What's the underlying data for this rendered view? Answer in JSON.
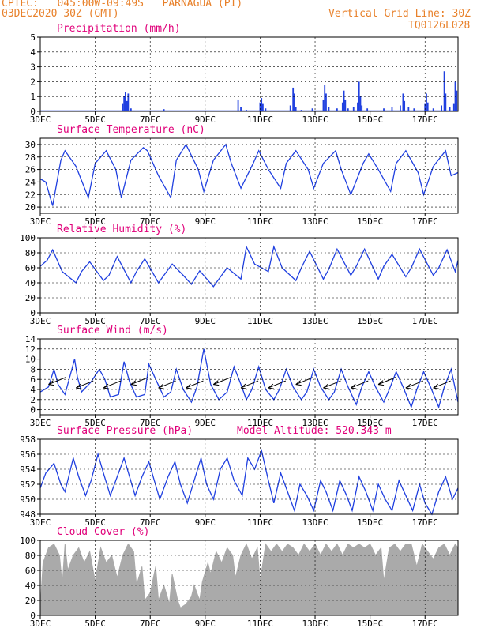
{
  "header": {
    "line1": "CPTEC:   045:00W-09:49S   PARNAGUA (PI)",
    "line2": "03DEC2020 30Z (GMT)",
    "grid_note": "Vertical Grid Line: 30Z",
    "code": "TQ0126L028"
  },
  "colors": {
    "header": "#e8812b",
    "title": "#e0007a",
    "line": "#2040e0",
    "cloud": "#aaaaaa",
    "grid": "#000000"
  },
  "chart_data": [
    {
      "type": "bar",
      "title": "Precipitation (mm/h)",
      "x_tick_labels": [
        "3DEC",
        "5DEC",
        "7DEC",
        "9DEC",
        "11DEC",
        "13DEC",
        "15DEC",
        "17DEC"
      ],
      "x_range_days": [
        3,
        18.2
      ],
      "ylim": [
        0,
        5
      ],
      "yticks": [
        0,
        1,
        2,
        3,
        4,
        5
      ],
      "grid": true,
      "points": [
        [
          6.0,
          0.5
        ],
        [
          6.05,
          1.0
        ],
        [
          6.1,
          1.3
        ],
        [
          6.15,
          0.7
        ],
        [
          6.2,
          1.2
        ],
        [
          6.3,
          0.2
        ],
        [
          7.5,
          0.15
        ],
        [
          10.2,
          0.8
        ],
        [
          10.3,
          0.3
        ],
        [
          10.5,
          0.1
        ],
        [
          11.0,
          0.6
        ],
        [
          11.05,
          0.9
        ],
        [
          11.1,
          0.5
        ],
        [
          11.2,
          0.2
        ],
        [
          12.1,
          0.4
        ],
        [
          12.2,
          1.6
        ],
        [
          12.25,
          1.2
        ],
        [
          12.3,
          0.3
        ],
        [
          12.5,
          0.1
        ],
        [
          12.9,
          0.2
        ],
        [
          13.3,
          0.8
        ],
        [
          13.35,
          1.8
        ],
        [
          13.4,
          1.2
        ],
        [
          13.5,
          0.3
        ],
        [
          13.8,
          0.2
        ],
        [
          14.0,
          0.6
        ],
        [
          14.05,
          1.4
        ],
        [
          14.1,
          0.8
        ],
        [
          14.2,
          0.2
        ],
        [
          14.4,
          0.3
        ],
        [
          14.55,
          0.6
        ],
        [
          14.6,
          2.0
        ],
        [
          14.65,
          1.0
        ],
        [
          14.7,
          0.4
        ],
        [
          14.9,
          0.2
        ],
        [
          15.5,
          0.2
        ],
        [
          15.8,
          0.3
        ],
        [
          16.1,
          0.4
        ],
        [
          16.2,
          1.2
        ],
        [
          16.25,
          0.7
        ],
        [
          16.4,
          0.3
        ],
        [
          16.6,
          0.2
        ],
        [
          17.0,
          0.5
        ],
        [
          17.05,
          1.2
        ],
        [
          17.1,
          0.6
        ],
        [
          17.3,
          0.2
        ],
        [
          17.6,
          0.4
        ],
        [
          17.7,
          2.7
        ],
        [
          17.75,
          1.2
        ],
        [
          17.9,
          0.3
        ],
        [
          18.05,
          0.5
        ],
        [
          18.1,
          2.0
        ],
        [
          18.15,
          1.4
        ]
      ]
    },
    {
      "type": "line",
      "title": "Surface Temperature (nC)",
      "x_tick_labels": [
        "3DEC",
        "5DEC",
        "7DEC",
        "9DEC",
        "11DEC",
        "13DEC",
        "15DEC",
        "17DEC"
      ],
      "x_range_days": [
        3,
        18.2
      ],
      "ylim": [
        19,
        31
      ],
      "yticks": [
        20,
        22,
        24,
        26,
        28,
        30
      ],
      "grid": true,
      "series": [
        {
          "x": [
            3.0,
            3.2,
            3.45,
            3.75,
            3.9,
            4.3,
            4.75,
            5.0,
            5.4,
            5.75,
            5.95,
            6.3,
            6.75,
            6.9,
            7.3,
            7.75,
            7.95,
            8.3,
            8.75,
            8.95,
            9.3,
            9.75,
            9.95,
            10.3,
            10.75,
            10.95,
            11.3,
            11.75,
            11.95,
            12.3,
            12.75,
            12.95,
            13.3,
            13.75,
            13.95,
            14.3,
            14.75,
            14.95,
            15.3,
            15.75,
            15.95,
            16.3,
            16.75,
            16.95,
            17.3,
            17.75,
            17.95,
            18.2
          ],
          "y": [
            24.5,
            24.0,
            20.2,
            27.5,
            29.0,
            26.5,
            21.5,
            27.0,
            29.0,
            26.0,
            21.5,
            27.5,
            29.5,
            29.0,
            25.0,
            21.5,
            27.5,
            30.0,
            26.0,
            22.5,
            27.5,
            30.0,
            27.0,
            23.0,
            27.0,
            29.0,
            26.0,
            23.0,
            27.0,
            29.0,
            26.0,
            23.0,
            27.0,
            29.0,
            26.0,
            22.0,
            27.0,
            28.5,
            26.0,
            22.5,
            27.0,
            29.0,
            25.5,
            22.0,
            26.5,
            29.0,
            25.0,
            25.5
          ]
        }
      ]
    },
    {
      "type": "line",
      "title": "Relative Humidity (%)",
      "x_tick_labels": [
        "3DEC",
        "5DEC",
        "7DEC",
        "9DEC",
        "11DEC",
        "13DEC",
        "15DEC",
        "17DEC"
      ],
      "x_range_days": [
        3,
        18.2
      ],
      "ylim": [
        0,
        100
      ],
      "yticks": [
        0,
        20,
        40,
        60,
        80,
        100
      ],
      "grid": true,
      "series": [
        {
          "x": [
            3.0,
            3.25,
            3.45,
            3.8,
            4.3,
            4.5,
            4.8,
            5.3,
            5.5,
            5.8,
            6.3,
            6.5,
            6.8,
            7.3,
            7.5,
            7.8,
            8.2,
            8.5,
            8.8,
            9.3,
            9.5,
            9.8,
            10.3,
            10.5,
            10.8,
            11.3,
            11.5,
            11.8,
            12.3,
            12.5,
            12.8,
            13.3,
            13.5,
            13.8,
            14.3,
            14.5,
            14.8,
            15.3,
            15.5,
            15.8,
            16.3,
            16.5,
            16.8,
            17.3,
            17.5,
            17.8,
            18.1,
            18.2
          ],
          "y": [
            62,
            70,
            84,
            55,
            40,
            55,
            68,
            43,
            50,
            75,
            40,
            55,
            72,
            40,
            50,
            65,
            50,
            38,
            56,
            35,
            45,
            60,
            45,
            88,
            65,
            55,
            88,
            60,
            43,
            60,
            82,
            45,
            58,
            85,
            50,
            62,
            85,
            45,
            62,
            78,
            48,
            60,
            85,
            50,
            60,
            84,
            55,
            70
          ]
        }
      ]
    },
    {
      "type": "line",
      "title": "Surface Wind (m/s)",
      "x_tick_labels": [
        "3DEC",
        "5DEC",
        "7DEC",
        "9DEC",
        "11DEC",
        "13DEC",
        "15DEC",
        "17DEC"
      ],
      "x_range_days": [
        3,
        18.2
      ],
      "ylim": [
        -1,
        14
      ],
      "yticks": [
        0,
        2,
        4,
        6,
        8,
        10,
        12,
        14
      ],
      "grid": true,
      "series": [
        {
          "x": [
            3.0,
            3.3,
            3.5,
            3.65,
            3.9,
            4.25,
            4.35,
            4.5,
            4.85,
            5.15,
            5.35,
            5.55,
            5.85,
            6.05,
            6.25,
            6.5,
            6.8,
            6.95,
            7.2,
            7.5,
            7.75,
            7.95,
            8.2,
            8.5,
            8.7,
            8.95,
            9.2,
            9.5,
            9.8,
            10.05,
            10.3,
            10.5,
            10.7,
            10.95,
            11.2,
            11.5,
            11.7,
            11.95,
            12.2,
            12.5,
            12.7,
            12.95,
            13.2,
            13.5,
            13.7,
            13.95,
            14.2,
            14.5,
            14.7,
            14.95,
            15.2,
            15.5,
            15.7,
            15.95,
            16.2,
            16.5,
            16.7,
            16.95,
            17.2,
            17.5,
            17.7,
            17.95,
            18.2
          ],
          "y": [
            3.5,
            4.5,
            8.0,
            5.0,
            3.0,
            10.0,
            6.5,
            3.5,
            5.5,
            8.0,
            6.0,
            2.5,
            3.0,
            9.5,
            5.5,
            2.5,
            3.0,
            9.0,
            6.0,
            2.5,
            3.5,
            8.0,
            4.0,
            1.5,
            4.5,
            12.0,
            5.0,
            2.0,
            3.5,
            8.5,
            5.0,
            2.0,
            4.0,
            8.5,
            4.0,
            2.0,
            4.0,
            8.0,
            4.5,
            2.0,
            3.5,
            8.0,
            4.5,
            2.0,
            3.5,
            8.0,
            4.5,
            1.0,
            4.5,
            7.5,
            4.5,
            1.5,
            4.0,
            7.5,
            4.5,
            0.5,
            4.0,
            7.5,
            4.5,
            0.5,
            4.5,
            8.0,
            1.5
          ]
        }
      ],
      "barbs_note": "wind direction arrows along series"
    },
    {
      "type": "line",
      "title": "Surface Pressure (hPa)",
      "annotation": "Model Altitude: 520.343 m",
      "x_tick_labels": [
        "3DEC",
        "5DEC",
        "7DEC",
        "9DEC",
        "11DEC",
        "13DEC",
        "15DEC",
        "17DEC"
      ],
      "x_range_days": [
        3,
        18.2
      ],
      "ylim": [
        948,
        958
      ],
      "yticks": [
        948,
        950,
        952,
        954,
        956,
        958
      ],
      "grid": true,
      "series": [
        {
          "x": [
            3.0,
            3.2,
            3.5,
            3.75,
            3.9,
            4.2,
            4.4,
            4.65,
            4.85,
            5.1,
            5.3,
            5.55,
            5.8,
            6.05,
            6.25,
            6.45,
            6.7,
            6.95,
            7.15,
            7.35,
            7.65,
            7.9,
            8.1,
            8.35,
            8.6,
            8.85,
            9.05,
            9.3,
            9.55,
            9.8,
            10.05,
            10.35,
            10.55,
            10.8,
            11.05,
            11.3,
            11.5,
            11.75,
            12.0,
            12.25,
            12.45,
            12.7,
            12.95,
            13.2,
            13.4,
            13.65,
            13.9,
            14.15,
            14.35,
            14.6,
            14.85,
            15.1,
            15.3,
            15.55,
            15.8,
            16.05,
            16.3,
            16.55,
            16.8,
            17.0,
            17.25,
            17.5,
            17.75,
            18.0,
            18.2
          ],
          "y": [
            951.5,
            953.5,
            954.8,
            952.0,
            951.0,
            955.5,
            953.0,
            950.5,
            952.5,
            956.0,
            953.5,
            950.5,
            953.0,
            955.5,
            953.0,
            950.5,
            953.0,
            955.0,
            952.5,
            950.0,
            953.0,
            955.0,
            952.0,
            949.5,
            952.5,
            955.5,
            952.0,
            950.0,
            954.0,
            955.5,
            952.5,
            950.5,
            955.5,
            954.0,
            956.5,
            952.5,
            949.5,
            953.5,
            951.0,
            948.5,
            952.0,
            950.5,
            948.5,
            952.5,
            951.0,
            948.5,
            952.5,
            950.5,
            948.5,
            953.0,
            951.0,
            948.5,
            952.0,
            950.0,
            948.5,
            952.5,
            950.5,
            948.5,
            952.0,
            949.5,
            948.0,
            951.0,
            953.0,
            950.0,
            951.5
          ]
        }
      ]
    },
    {
      "type": "area",
      "title": "Cloud Cover (%)",
      "x_tick_labels": [
        "3DEC",
        "5DEC",
        "7DEC",
        "9DEC",
        "11DEC",
        "13DEC",
        "15DEC",
        "17DEC"
      ],
      "x_range_days": [
        3,
        18.2
      ],
      "ylim": [
        0,
        100
      ],
      "yticks": [
        0,
        20,
        40,
        60,
        80,
        100
      ],
      "grid": true,
      "points": [
        [
          3.0,
          10
        ],
        [
          3.1,
          70
        ],
        [
          3.3,
          90
        ],
        [
          3.5,
          95
        ],
        [
          3.7,
          80
        ],
        [
          3.8,
          40
        ],
        [
          3.9,
          95
        ],
        [
          4.0,
          60
        ],
        [
          4.2,
          80
        ],
        [
          4.4,
          90
        ],
        [
          4.6,
          70
        ],
        [
          4.8,
          85
        ],
        [
          5.0,
          45
        ],
        [
          5.2,
          90
        ],
        [
          5.4,
          70
        ],
        [
          5.6,
          80
        ],
        [
          5.8,
          50
        ],
        [
          6.0,
          80
        ],
        [
          6.2,
          95
        ],
        [
          6.4,
          85
        ],
        [
          6.5,
          40
        ],
        [
          6.7,
          65
        ],
        [
          6.8,
          20
        ],
        [
          7.0,
          30
        ],
        [
          7.2,
          65
        ],
        [
          7.3,
          20
        ],
        [
          7.5,
          40
        ],
        [
          7.7,
          15
        ],
        [
          7.8,
          55
        ],
        [
          8.0,
          20
        ],
        [
          8.1,
          10
        ],
        [
          8.3,
          15
        ],
        [
          8.5,
          25
        ],
        [
          8.6,
          40
        ],
        [
          8.8,
          20
        ],
        [
          8.9,
          45
        ],
        [
          9.1,
          70
        ],
        [
          9.2,
          55
        ],
        [
          9.4,
          85
        ],
        [
          9.6,
          70
        ],
        [
          9.8,
          90
        ],
        [
          10.0,
          80
        ],
        [
          10.1,
          50
        ],
        [
          10.3,
          80
        ],
        [
          10.5,
          95
        ],
        [
          10.7,
          75
        ],
        [
          10.9,
          90
        ],
        [
          11.0,
          45
        ],
        [
          11.2,
          95
        ],
        [
          11.4,
          85
        ],
        [
          11.6,
          95
        ],
        [
          11.8,
          85
        ],
        [
          12.0,
          95
        ],
        [
          12.2,
          90
        ],
        [
          12.4,
          80
        ],
        [
          12.6,
          95
        ],
        [
          12.8,
          85
        ],
        [
          13.0,
          95
        ],
        [
          13.2,
          80
        ],
        [
          13.4,
          95
        ],
        [
          13.6,
          85
        ],
        [
          13.8,
          95
        ],
        [
          14.0,
          80
        ],
        [
          14.2,
          95
        ],
        [
          14.4,
          90
        ],
        [
          14.6,
          95
        ],
        [
          14.8,
          90
        ],
        [
          15.0,
          95
        ],
        [
          15.2,
          80
        ],
        [
          15.4,
          90
        ],
        [
          15.5,
          45
        ],
        [
          15.7,
          90
        ],
        [
          15.9,
          95
        ],
        [
          16.1,
          85
        ],
        [
          16.3,
          95
        ],
        [
          16.5,
          95
        ],
        [
          16.7,
          65
        ],
        [
          16.9,
          95
        ],
        [
          17.1,
          85
        ],
        [
          17.3,
          75
        ],
        [
          17.5,
          90
        ],
        [
          17.7,
          95
        ],
        [
          17.9,
          80
        ],
        [
          18.1,
          95
        ],
        [
          18.2,
          90
        ]
      ]
    }
  ]
}
